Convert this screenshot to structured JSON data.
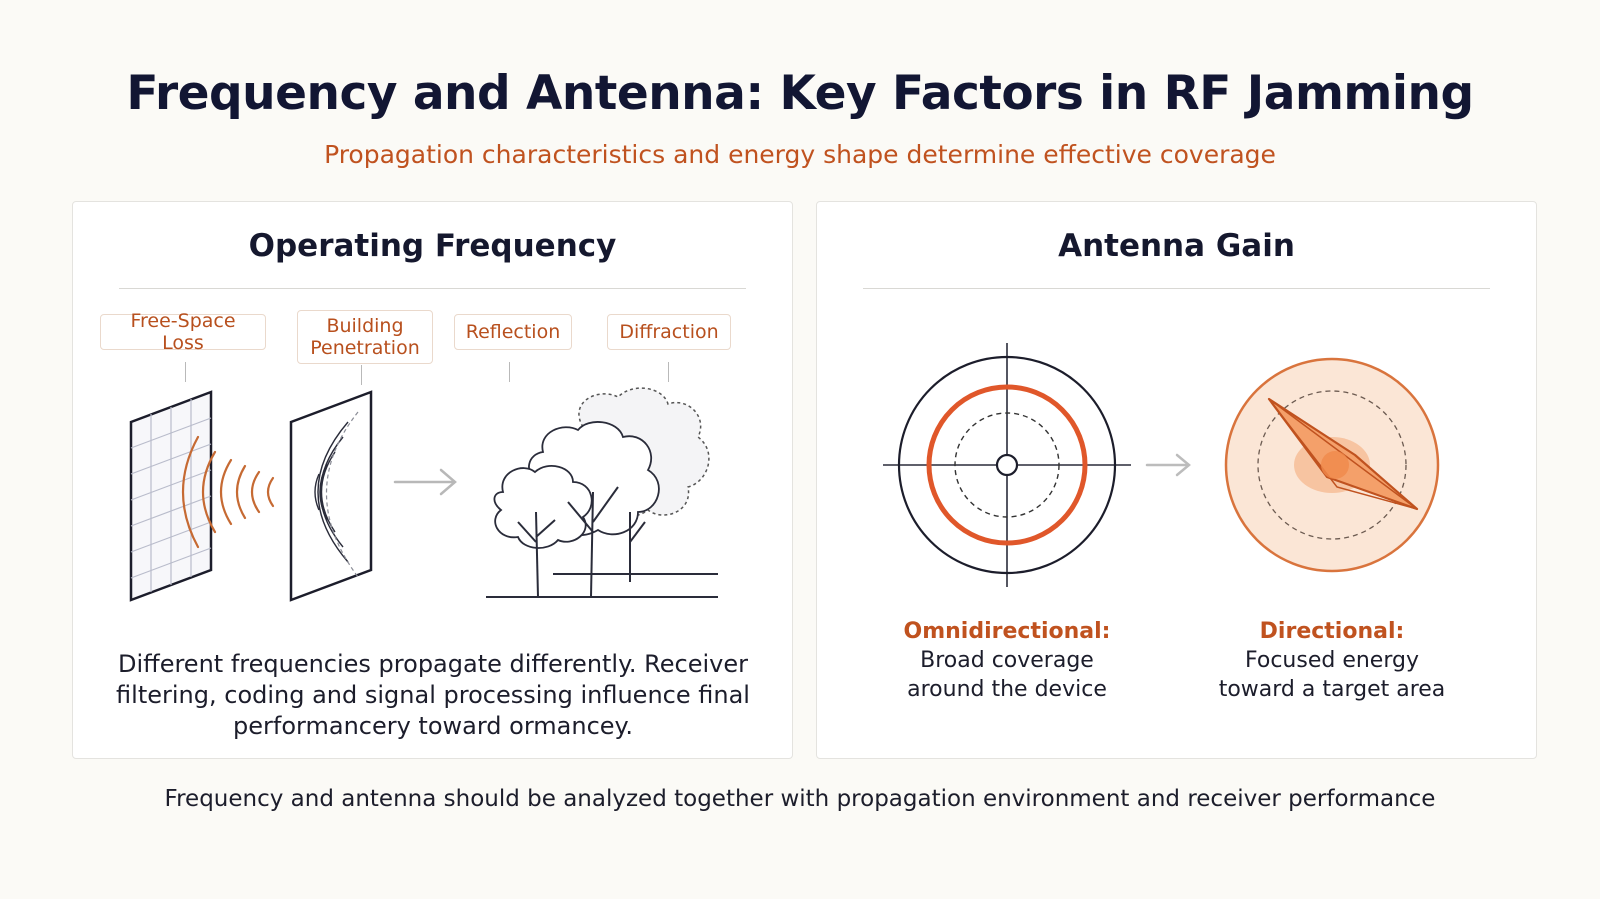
{
  "header": {
    "title": "Frequency and Antenna: Key Factors in RF Jamming",
    "subtitle": "Propagation characteristics and energy shape determine effective coverage"
  },
  "frequency_panel": {
    "title": "Operating Frequency",
    "tags": [
      "Free-Space Loss",
      "Building Penetration",
      "Reflection",
      "Diffraction"
    ],
    "description": "Different frequencies propagate differently. Receiver filtering, coding and signal processing influence final performancery toward ormancey."
  },
  "antenna_panel": {
    "title": "Antenna Gain",
    "omni": {
      "heading": "Omnidirectional:",
      "line1": "Broad coverage",
      "line2": "around the device"
    },
    "directional": {
      "heading": "Directional:",
      "line1": "Focused energy",
      "line2": "toward a target area"
    }
  },
  "footer": {
    "note": "Frequency and antenna should be analyzed together with propagation environment and receiver performance"
  },
  "colors": {
    "accent": "#c0521f",
    "ring": "#e0572a",
    "navy": "#121633"
  },
  "icons": [
    "wall-grid-icon",
    "wave-arcs-icon",
    "building-wall-icon",
    "arrow-right-icon",
    "trees-icon",
    "omni-pattern-icon",
    "directional-pattern-icon"
  ]
}
